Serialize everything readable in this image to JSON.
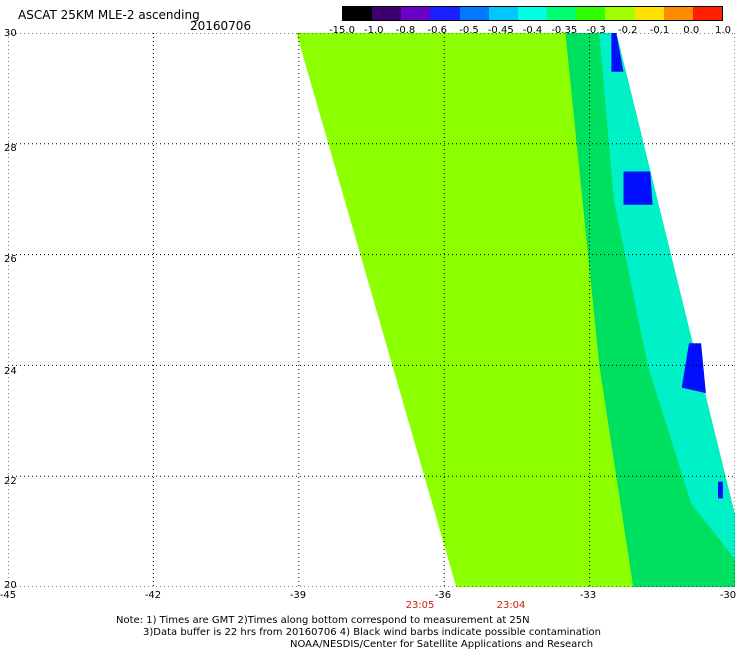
{
  "title": "ASCAT 25KM MLE-2 ascending",
  "date": "20160706",
  "colorbar": {
    "labels": [
      "-15.0",
      "-1.0",
      "-0.8",
      "-0.6",
      "-0.5",
      "-0.45",
      "-0.4",
      "-0.35",
      "-0.3",
      "-0.2",
      "-0.1",
      "0.0",
      "1.0"
    ],
    "colors": [
      "#000000",
      "#3c006e",
      "#6a00c8",
      "#1a20ff",
      "#0078ff",
      "#00c8ff",
      "#00ffe0",
      "#00ff70",
      "#30ff00",
      "#a0ff00",
      "#ffe000",
      "#ff8c00",
      "#ff2000"
    ]
  },
  "map": {
    "lon_ticks": [
      "-45",
      "-42",
      "-39",
      "-36",
      "-33",
      "-30"
    ],
    "lat_ticks": [
      "30",
      "28",
      "26",
      "24",
      "22",
      "20"
    ],
    "lon_range": [
      -45,
      -30
    ],
    "lat_range": [
      20,
      30
    ],
    "swath_color_main": "#8cff00",
    "swath_color_edge": "#00e060",
    "swath_color_low": "#0010ff"
  },
  "times": [
    "23:05",
    "23:04"
  ],
  "notes": [
    "Note: 1) Times are GMT 2)Times along bottom correspond to measurement at 25N",
    "3)Data buffer is 22 hrs from 20160706 4) Black wind barbs indicate possible contamination",
    "NOAA/NESDIS/Center for Satellite Applications and Research"
  ]
}
